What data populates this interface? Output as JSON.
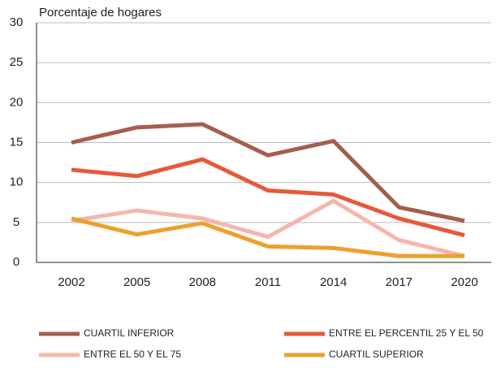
{
  "chart_data": {
    "type": "line",
    "y_axis_label": "Porcentaje de hogares",
    "categories": [
      "2002",
      "2005",
      "2008",
      "2011",
      "2014",
      "2017",
      "2020"
    ],
    "series": [
      {
        "name": "CUARTIL INFERIOR",
        "color": "#a65e4c",
        "values": [
          15,
          16.9,
          17.3,
          13.4,
          15.2,
          6.9,
          5.2
        ]
      },
      {
        "name": "ENTRE EL PERCENTIL 25 Y EL 50",
        "color": "#e8583a",
        "values": [
          11.6,
          10.8,
          12.9,
          9.0,
          8.5,
          5.5,
          3.4
        ]
      },
      {
        "name": "ENTRE EL 50 Y EL 75",
        "color": "#f6b6ad",
        "values": [
          5.2,
          6.5,
          5.5,
          3.2,
          7.7,
          2.8,
          0.8
        ]
      },
      {
        "name": "CUARTIL SUPERIOR",
        "color": "#eca12b",
        "values": [
          5.5,
          3.5,
          4.9,
          2.0,
          1.8,
          0.8,
          0.8
        ]
      }
    ],
    "ylim": [
      0,
      30
    ],
    "yticks": [
      0,
      5,
      10,
      15,
      20,
      25,
      30
    ],
    "grid": true,
    "legend": "bottom"
  }
}
